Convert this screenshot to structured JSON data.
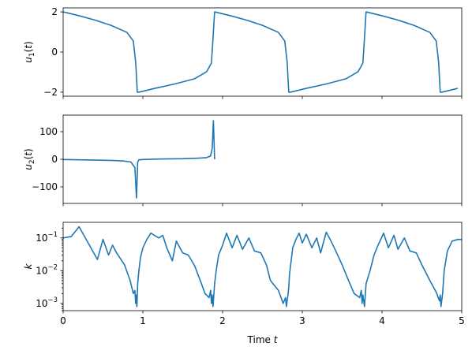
{
  "chart_data": [
    {
      "type": "line",
      "ylabel": "u_1(t)",
      "ylabel_math": {
        "base": "u",
        "sub": "1",
        "suffix": "(t)"
      },
      "xlim": [
        0,
        5
      ],
      "ylim": [
        -2.2,
        2.2
      ],
      "yticks": [
        -2,
        0,
        2
      ],
      "ytick_labels": [
        "−2",
        "0",
        "2"
      ],
      "xticks": [
        0,
        1,
        2,
        3,
        4,
        5
      ],
      "x_ticklabels_visible": false,
      "grid": false,
      "period": 1.9,
      "series": [
        {
          "x": [
            0,
            0.2,
            0.4,
            0.6,
            0.8,
            0.88,
            0.91,
            0.93,
            0.95,
            1.15,
            1.4,
            1.65,
            1.8,
            1.86,
            1.88,
            1.9
          ],
          "y": [
            2.0,
            1.81,
            1.59,
            1.33,
            0.98,
            0.55,
            -0.5,
            -2.0,
            -2.0,
            -1.81,
            -1.59,
            -1.33,
            -0.98,
            -0.55,
            0.7,
            2.0
          ]
        }
      ]
    },
    {
      "type": "line",
      "ylabel": "u_2(t)",
      "ylabel_math": {
        "base": "u",
        "sub": "2",
        "suffix": "(t)"
      },
      "xlim": [
        0,
        5
      ],
      "ylim": [
        -160,
        160
      ],
      "yticks": [
        -100,
        0,
        100
      ],
      "ytick_labels": [
        "−100",
        "0",
        "100"
      ],
      "xticks": [
        0,
        1,
        2,
        3,
        4,
        5
      ],
      "x_ticklabels_visible": false,
      "grid": false,
      "series": [
        {
          "x": [
            0,
            0.2,
            0.4,
            0.6,
            0.75,
            0.85,
            0.9,
            0.92,
            0.935,
            0.95,
            1.0,
            1.2,
            1.5,
            1.7,
            1.8,
            1.85,
            1.87,
            1.885,
            1.9
          ],
          "y": [
            -1,
            -2,
            -3,
            -4,
            -6,
            -10,
            -30,
            -140,
            -10,
            -2,
            -1,
            1,
            2,
            4,
            6,
            12,
            40,
            140,
            0
          ]
        }
      ]
    },
    {
      "type": "line",
      "ylabel": "k",
      "ylabel_math": {
        "base": "k",
        "sub": "",
        "suffix": ""
      },
      "yscale": "log",
      "xlabel": "Time t",
      "xlim": [
        0,
        5
      ],
      "ylim": [
        0.0006,
        0.3
      ],
      "yticks": [
        0.001,
        0.01,
        0.1
      ],
      "ytick_labels": [
        {
          "base": "10",
          "exp": "−3"
        },
        {
          "base": "10",
          "exp": "−2"
        },
        {
          "base": "10",
          "exp": "−1"
        }
      ],
      "xticks": [
        0,
        1,
        2,
        3,
        4,
        5
      ],
      "xtick_labels": [
        "0",
        "1",
        "2",
        "3",
        "4",
        "5"
      ],
      "grid": false,
      "series": [
        {
          "x": [
            0,
            0.1,
            0.2,
            0.43,
            0.5,
            0.57,
            0.62,
            0.67,
            0.77,
            0.84,
            0.88,
            0.9,
            0.91,
            0.915,
            0.925,
            0.935,
            0.95,
            0.97,
            1.0,
            1.05,
            1.1,
            1.2,
            1.25,
            1.3,
            1.37,
            1.42,
            1.5,
            1.57,
            1.65,
            1.72,
            1.78,
            1.83,
            1.85,
            1.86,
            1.87,
            1.88,
            1.9,
            1.92,
            1.95,
            2.0,
            2.05,
            2.12,
            2.18,
            2.25,
            2.33,
            2.4,
            2.48,
            2.55,
            2.6,
            2.7,
            2.76,
            2.79,
            2.8,
            2.82,
            2.83,
            2.84,
            2.86,
            2.88,
            2.92,
            2.96,
            3.0,
            3.05,
            3.12,
            3.18,
            3.23,
            3.3,
            3.35,
            3.42,
            3.5,
            3.58,
            3.65,
            3.72,
            3.74,
            3.75,
            3.76,
            3.78,
            3.8,
            3.85,
            3.9,
            3.95,
            4.02,
            4.08,
            4.15,
            4.2,
            4.28,
            4.35,
            4.43,
            4.5,
            4.6,
            4.68,
            4.72,
            4.73,
            4.74,
            4.76,
            4.78,
            4.82,
            4.88,
            4.95,
            5.0
          ],
          "y": [
            0.1,
            0.11,
            0.22,
            0.022,
            0.09,
            0.03,
            0.06,
            0.035,
            0.015,
            0.005,
            0.002,
            0.0025,
            0.001,
            0.0018,
            0.0008,
            0.004,
            0.01,
            0.025,
            0.05,
            0.09,
            0.14,
            0.1,
            0.12,
            0.05,
            0.02,
            0.08,
            0.035,
            0.03,
            0.014,
            0.005,
            0.002,
            0.0015,
            0.0025,
            0.001,
            0.0018,
            0.0008,
            0.004,
            0.01,
            0.03,
            0.06,
            0.14,
            0.05,
            0.12,
            0.045,
            0.1,
            0.04,
            0.035,
            0.015,
            0.005,
            0.0025,
            0.001,
            0.0015,
            0.0008,
            0.0018,
            0.003,
            0.008,
            0.02,
            0.05,
            0.09,
            0.14,
            0.07,
            0.13,
            0.05,
            0.1,
            0.035,
            0.15,
            0.09,
            0.04,
            0.015,
            0.005,
            0.002,
            0.0015,
            0.0025,
            0.001,
            0.0018,
            0.0008,
            0.004,
            0.01,
            0.03,
            0.06,
            0.14,
            0.05,
            0.12,
            0.045,
            0.1,
            0.04,
            0.035,
            0.015,
            0.005,
            0.0022,
            0.0012,
            0.0018,
            0.0008,
            0.002,
            0.01,
            0.04,
            0.08,
            0.09,
            0.09
          ]
        }
      ]
    }
  ]
}
